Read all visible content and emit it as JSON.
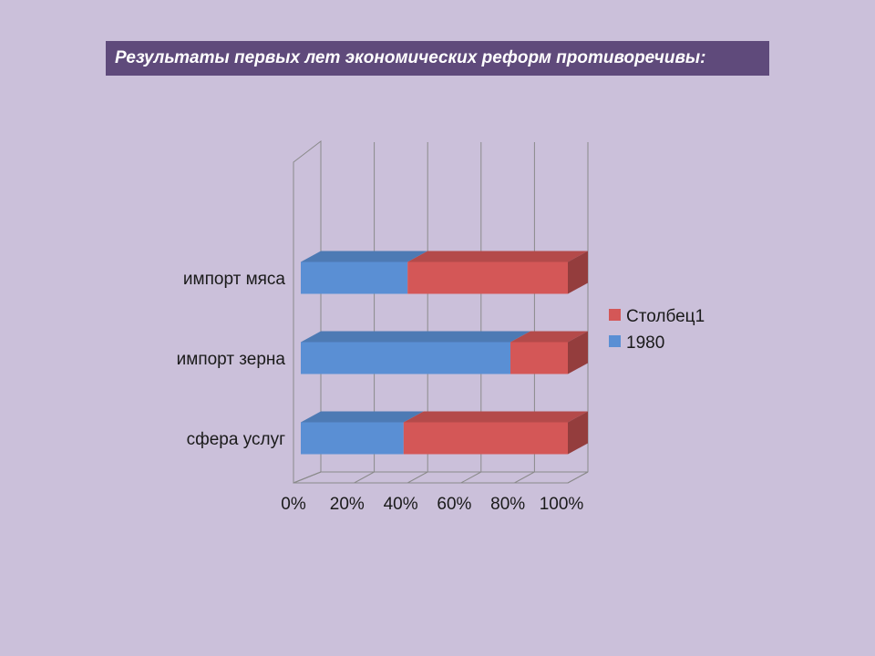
{
  "slide": {
    "title": "Результаты первых лет экономических реформ противоречивы:"
  },
  "chart_data": {
    "type": "bar",
    "orientation": "horizontal",
    "stacked": "percent",
    "three_d": true,
    "categories": [
      "сфера услуг",
      "импорт зерна",
      "импорт мяса"
    ],
    "series": [
      {
        "name": "1980",
        "values": [
          38.5,
          78.5,
          40
        ],
        "color": "#5a8fd4"
      },
      {
        "name": "Столбец1",
        "values": [
          61.5,
          21.5,
          60
        ],
        "color": "#d45757"
      }
    ],
    "x_ticks": [
      "0%",
      "20%",
      "40%",
      "60%",
      "80%",
      "100%"
    ],
    "xlim": [
      0,
      100
    ],
    "grid": true,
    "legend": {
      "position": "right",
      "entries": [
        "Столбец1",
        "1980"
      ]
    }
  }
}
